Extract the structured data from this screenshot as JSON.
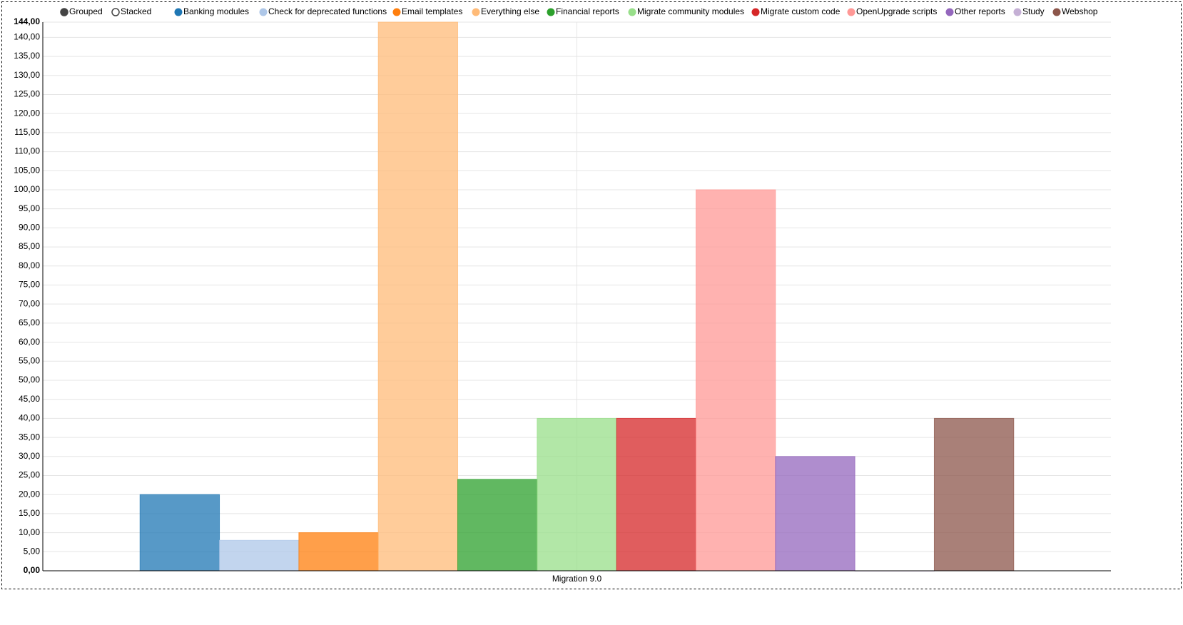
{
  "chart_data": {
    "type": "bar",
    "controls": [
      "Grouped",
      "Stacked"
    ],
    "categories": [
      "Migration 9.0"
    ],
    "series": [
      {
        "name": "Banking modules",
        "color": "#1f77b4",
        "values": [
          20
        ]
      },
      {
        "name": "Check for deprecated functions",
        "color": "#aec7e8",
        "values": [
          8
        ]
      },
      {
        "name": "Email templates",
        "color": "#ff7f0e",
        "values": [
          10
        ]
      },
      {
        "name": "Everything else",
        "color": "#ffbb78",
        "values": [
          144
        ]
      },
      {
        "name": "Financial reports",
        "color": "#2ca02c",
        "values": [
          24
        ]
      },
      {
        "name": "Migrate community modules",
        "color": "#98df8a",
        "values": [
          40
        ]
      },
      {
        "name": "Migrate custom code",
        "color": "#d62728",
        "values": [
          40
        ]
      },
      {
        "name": "OpenUpgrade scripts",
        "color": "#ff9896",
        "values": [
          100
        ]
      },
      {
        "name": "Other reports",
        "color": "#9467bd",
        "values": [
          30
        ]
      },
      {
        "name": "Study",
        "color": "#c5b0d5",
        "values": [
          0
        ]
      },
      {
        "name": "Webshop",
        "color": "#8c564b",
        "values": [
          40
        ]
      }
    ],
    "ylim": [
      0,
      144
    ],
    "yticks": [
      {
        "value": 0,
        "label": "0,00"
      },
      {
        "value": 5,
        "label": "5,00"
      },
      {
        "value": 10,
        "label": "10,00"
      },
      {
        "value": 15,
        "label": "15,00"
      },
      {
        "value": 20,
        "label": "20,00"
      },
      {
        "value": 25,
        "label": "25,00"
      },
      {
        "value": 30,
        "label": "30,00"
      },
      {
        "value": 35,
        "label": "35,00"
      },
      {
        "value": 40,
        "label": "40,00"
      },
      {
        "value": 45,
        "label": "45,00"
      },
      {
        "value": 50,
        "label": "50,00"
      },
      {
        "value": 55,
        "label": "55,00"
      },
      {
        "value": 60,
        "label": "60,00"
      },
      {
        "value": 65,
        "label": "65,00"
      },
      {
        "value": 70,
        "label": "70,00"
      },
      {
        "value": 75,
        "label": "75,00"
      },
      {
        "value": 80,
        "label": "80,00"
      },
      {
        "value": 85,
        "label": "85,00"
      },
      {
        "value": 90,
        "label": "90,00"
      },
      {
        "value": 95,
        "label": "95,00"
      },
      {
        "value": 100,
        "label": "100,00"
      },
      {
        "value": 105,
        "label": "105,00"
      },
      {
        "value": 110,
        "label": "110,00"
      },
      {
        "value": 115,
        "label": "115,00"
      },
      {
        "value": 120,
        "label": "120,00"
      },
      {
        "value": 125,
        "label": "125,00"
      },
      {
        "value": 130,
        "label": "130,00"
      },
      {
        "value": 135,
        "label": "135,00"
      },
      {
        "value": 140,
        "label": "140,00"
      },
      {
        "value": 144,
        "label": "144,00"
      }
    ],
    "grid": true
  }
}
